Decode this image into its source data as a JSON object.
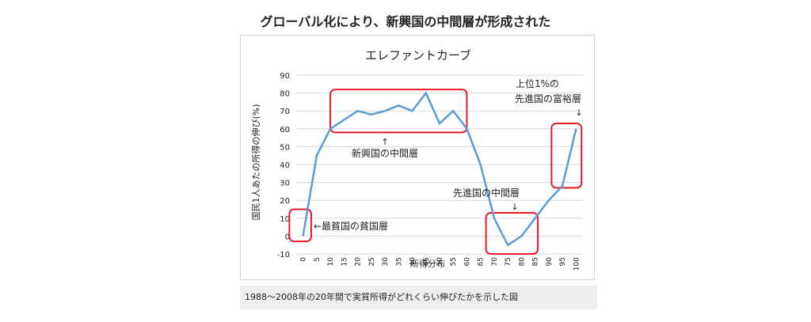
{
  "heading": "グローバル化により、新興国の中間層が形成された",
  "caption": "1988～2008年の20年間で実質所得がどれくらい伸びたかを示した図",
  "chart_data": {
    "type": "line",
    "title": "エレファントカーブ",
    "xlabel": "所得分布",
    "ylabel": "国民1人あたの所得の伸び(%)",
    "x": [
      0,
      5,
      10,
      15,
      20,
      25,
      30,
      35,
      40,
      45,
      50,
      55,
      60,
      65,
      70,
      75,
      80,
      85,
      90,
      95,
      100
    ],
    "y": [
      0,
      45,
      60,
      65,
      70,
      68,
      70,
      73,
      70,
      80,
      63,
      70,
      60,
      40,
      10,
      -5,
      0,
      10,
      20,
      28,
      60
    ],
    "ylim": [
      -10,
      90
    ],
    "yticks": [
      -10,
      0,
      10,
      20,
      30,
      40,
      50,
      60,
      70,
      80,
      90
    ],
    "xticks": [
      0,
      5,
      10,
      15,
      20,
      25,
      30,
      35,
      40,
      45,
      50,
      55,
      60,
      65,
      70,
      75,
      80,
      85,
      90,
      95,
      100
    ],
    "grid": true,
    "line_color": "#5b9bd5",
    "highlight_color": "#e8192c",
    "annotations": [
      {
        "id": "middle",
        "text": "新興国の中間層",
        "x_range": [
          10,
          60
        ],
        "y_range": [
          58,
          82
        ]
      },
      {
        "id": "poorest",
        "text": "←最貧国の貧国層",
        "x_range": [
          -5,
          3
        ],
        "y_range": [
          -3,
          15
        ]
      },
      {
        "id": "developed",
        "text": "先進国の中間層",
        "x_range": [
          67,
          86
        ],
        "y_range": [
          -10,
          13
        ]
      },
      {
        "id": "top",
        "text_lines": [
          "上位1%の",
          "先進国の富裕層"
        ],
        "x_range": [
          91,
          102
        ],
        "y_range": [
          27,
          63
        ]
      }
    ]
  }
}
